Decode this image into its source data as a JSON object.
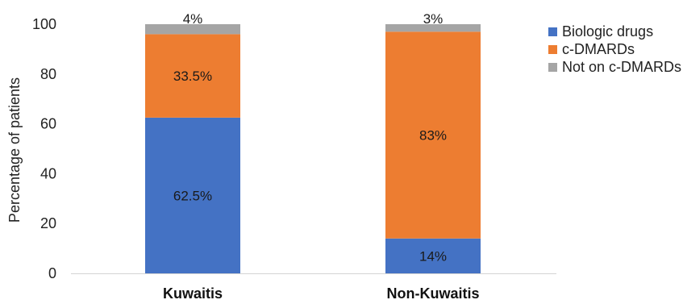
{
  "chart_data": {
    "type": "bar",
    "stacked": true,
    "categories": [
      "Kuwaitis",
      "Non-Kuwaitis"
    ],
    "series": [
      {
        "name": "Biologic drugs",
        "values": [
          62.5,
          14
        ],
        "labels": [
          "62.5%",
          "14%"
        ],
        "color": "#4472C4"
      },
      {
        "name": "c-DMARDs",
        "values": [
          33.5,
          83
        ],
        "labels": [
          "33.5%",
          "83%"
        ],
        "color": "#ED7D31"
      },
      {
        "name": "Not on c-DMARDs",
        "values": [
          4,
          3
        ],
        "labels": [
          "4%",
          "3%"
        ],
        "color": "#A5A5A5"
      }
    ],
    "ylabel": "Percentage of patients",
    "xlabel": "",
    "ylim": [
      0,
      100
    ],
    "yticks": [
      0,
      20,
      40,
      60,
      80,
      100
    ],
    "grid": false,
    "legend": "right"
  }
}
